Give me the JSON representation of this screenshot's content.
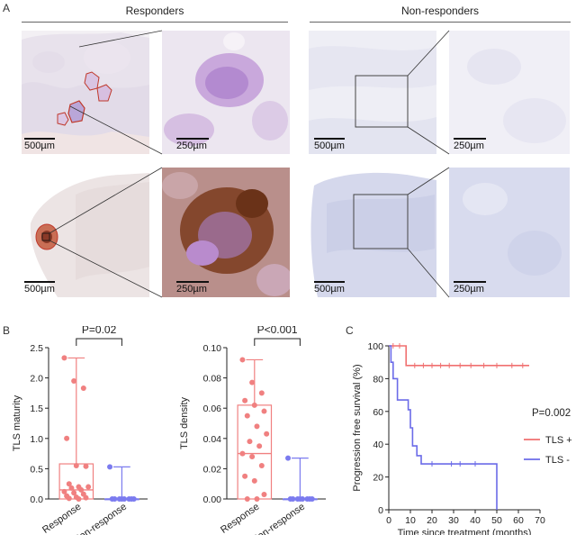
{
  "panels": {
    "A": "A",
    "B": "B",
    "C": "C"
  },
  "micrographs": {
    "responders_title": "Responders",
    "nonresponders_title": "Non-responders",
    "scale_large": "500µm",
    "scale_small": "250µm",
    "colors": {
      "tissue_light": "#ece7ef",
      "tissue_blue": "#cfd3ea",
      "stain_purple": "#b889d0",
      "stain_brown": "#7a3b1c",
      "roi_outline": "#c0392b"
    }
  },
  "chart_data": [
    {
      "type": "box",
      "ylabel": "TLS maturity",
      "categories": [
        "Response",
        "Non-response"
      ],
      "ylim": [
        0,
        2.5
      ],
      "yticks": [
        "0.0",
        "0.5",
        "1.0",
        "1.5",
        "2.0",
        "2.5"
      ],
      "significance": "P=0.02",
      "colors": [
        "#f08080",
        "#7b7bef"
      ],
      "groups": [
        {
          "name": "Response",
          "min": 0,
          "q1": 0.0,
          "median": 0.15,
          "q3": 0.58,
          "max": 2.33,
          "points": [
            2.33,
            1.95,
            1.83,
            1.0,
            0.55,
            0.54,
            0.25,
            0.2,
            0.2,
            0.18,
            0.15,
            0.12,
            0.1,
            0.08,
            0.05,
            0.03,
            0.02,
            0.01,
            0.0
          ]
        },
        {
          "name": "Non-response",
          "min": 0,
          "q1": 0,
          "median": 0,
          "q3": 0,
          "max": 0.53,
          "points": [
            0.53,
            0,
            0,
            0,
            0,
            0,
            0,
            0,
            0
          ]
        }
      ]
    },
    {
      "type": "box",
      "ylabel": "TLS density",
      "categories": [
        "Response",
        "Non-response"
      ],
      "ylim": [
        0,
        0.1
      ],
      "yticks": [
        "0.00",
        "0.02",
        "0.04",
        "0.06",
        "0.08",
        "0.10"
      ],
      "significance": "P<0.001",
      "colors": [
        "#f08080",
        "#7b7bef"
      ],
      "groups": [
        {
          "name": "Response",
          "min": 0,
          "q1": 0.0,
          "median": 0.03,
          "q3": 0.062,
          "max": 0.092,
          "points": [
            0.092,
            0.077,
            0.07,
            0.065,
            0.062,
            0.058,
            0.055,
            0.048,
            0.043,
            0.038,
            0.035,
            0.03,
            0.028,
            0.022,
            0.015,
            0.012,
            0.003,
            0.0,
            0.0
          ]
        },
        {
          "name": "Non-response",
          "min": 0,
          "q1": 0,
          "median": 0,
          "q3": 0,
          "max": 0.027,
          "points": [
            0.027,
            0,
            0,
            0,
            0,
            0,
            0,
            0,
            0
          ]
        }
      ]
    },
    {
      "type": "line",
      "xlabel": "Time since treatment (months)",
      "ylabel": "Progression free survival (%)",
      "xlim": [
        0,
        70
      ],
      "ylim": [
        0,
        100
      ],
      "xticks": [
        "0",
        "10",
        "20",
        "30",
        "40",
        "50",
        "60",
        "70"
      ],
      "yticks": [
        "0",
        "20",
        "40",
        "60",
        "80",
        "100"
      ],
      "annotation": "P=0.002",
      "legend_position": "right",
      "series": [
        {
          "name": "TLS +",
          "color": "#f07070",
          "steps": [
            [
              0,
              100
            ],
            [
              8,
              100
            ],
            [
              8,
              88
            ],
            [
              65,
              88
            ]
          ],
          "censors": [
            [
              2,
              100
            ],
            [
              5,
              100
            ],
            [
              12,
              88
            ],
            [
              16,
              88
            ],
            [
              20,
              88
            ],
            [
              24,
              88
            ],
            [
              28,
              88
            ],
            [
              33,
              88
            ],
            [
              38,
              88
            ],
            [
              44,
              88
            ],
            [
              50,
              88
            ],
            [
              57,
              88
            ],
            [
              62,
              88
            ]
          ]
        },
        {
          "name": "TLS -",
          "color": "#6b6be8",
          "steps": [
            [
              0,
              100
            ],
            [
              1,
              100
            ],
            [
              1,
              90
            ],
            [
              2,
              90
            ],
            [
              2,
              80
            ],
            [
              4,
              80
            ],
            [
              4,
              67
            ],
            [
              9,
              67
            ],
            [
              9,
              61
            ],
            [
              10,
              61
            ],
            [
              10,
              50
            ],
            [
              11,
              50
            ],
            [
              11,
              39
            ],
            [
              13,
              39
            ],
            [
              13,
              33
            ],
            [
              15,
              33
            ],
            [
              15,
              28
            ],
            [
              50,
              28
            ],
            [
              50,
              0
            ]
          ],
          "censors": [
            [
              20,
              28
            ],
            [
              29,
              28
            ],
            [
              33,
              28
            ],
            [
              40,
              28
            ]
          ]
        }
      ]
    }
  ]
}
